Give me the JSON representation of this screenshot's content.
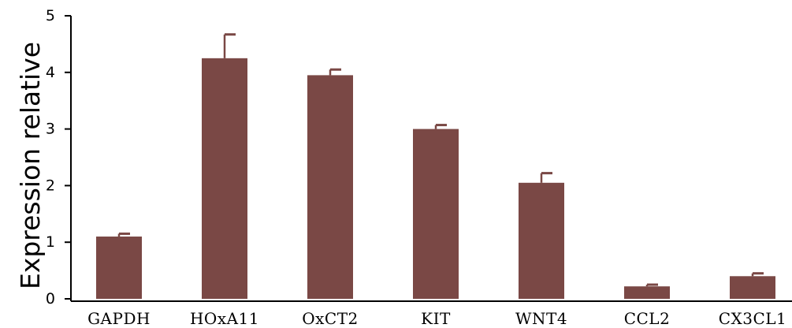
{
  "chart_data": {
    "type": "bar",
    "title": "",
    "xlabel": "",
    "ylabel": "Expression relative",
    "categories": [
      "GAPDH",
      "HOxA11",
      "OxCT2",
      "KIT",
      "WNT4",
      "CCL2",
      "CX3CL1"
    ],
    "series": [
      {
        "values": [
          1.1,
          4.25,
          3.95,
          3.0,
          2.05,
          0.22,
          0.4
        ],
        "errors": [
          0.05,
          0.42,
          0.1,
          0.07,
          0.17,
          0.03,
          0.05
        ]
      }
    ],
    "ylim": [
      0,
      5
    ],
    "yticks": [
      "0",
      "1",
      "2",
      "3",
      "4",
      "5"
    ],
    "grid": false,
    "legend": "none",
    "colors": {
      "bar": "#7a4845",
      "axis": "#000000"
    }
  }
}
